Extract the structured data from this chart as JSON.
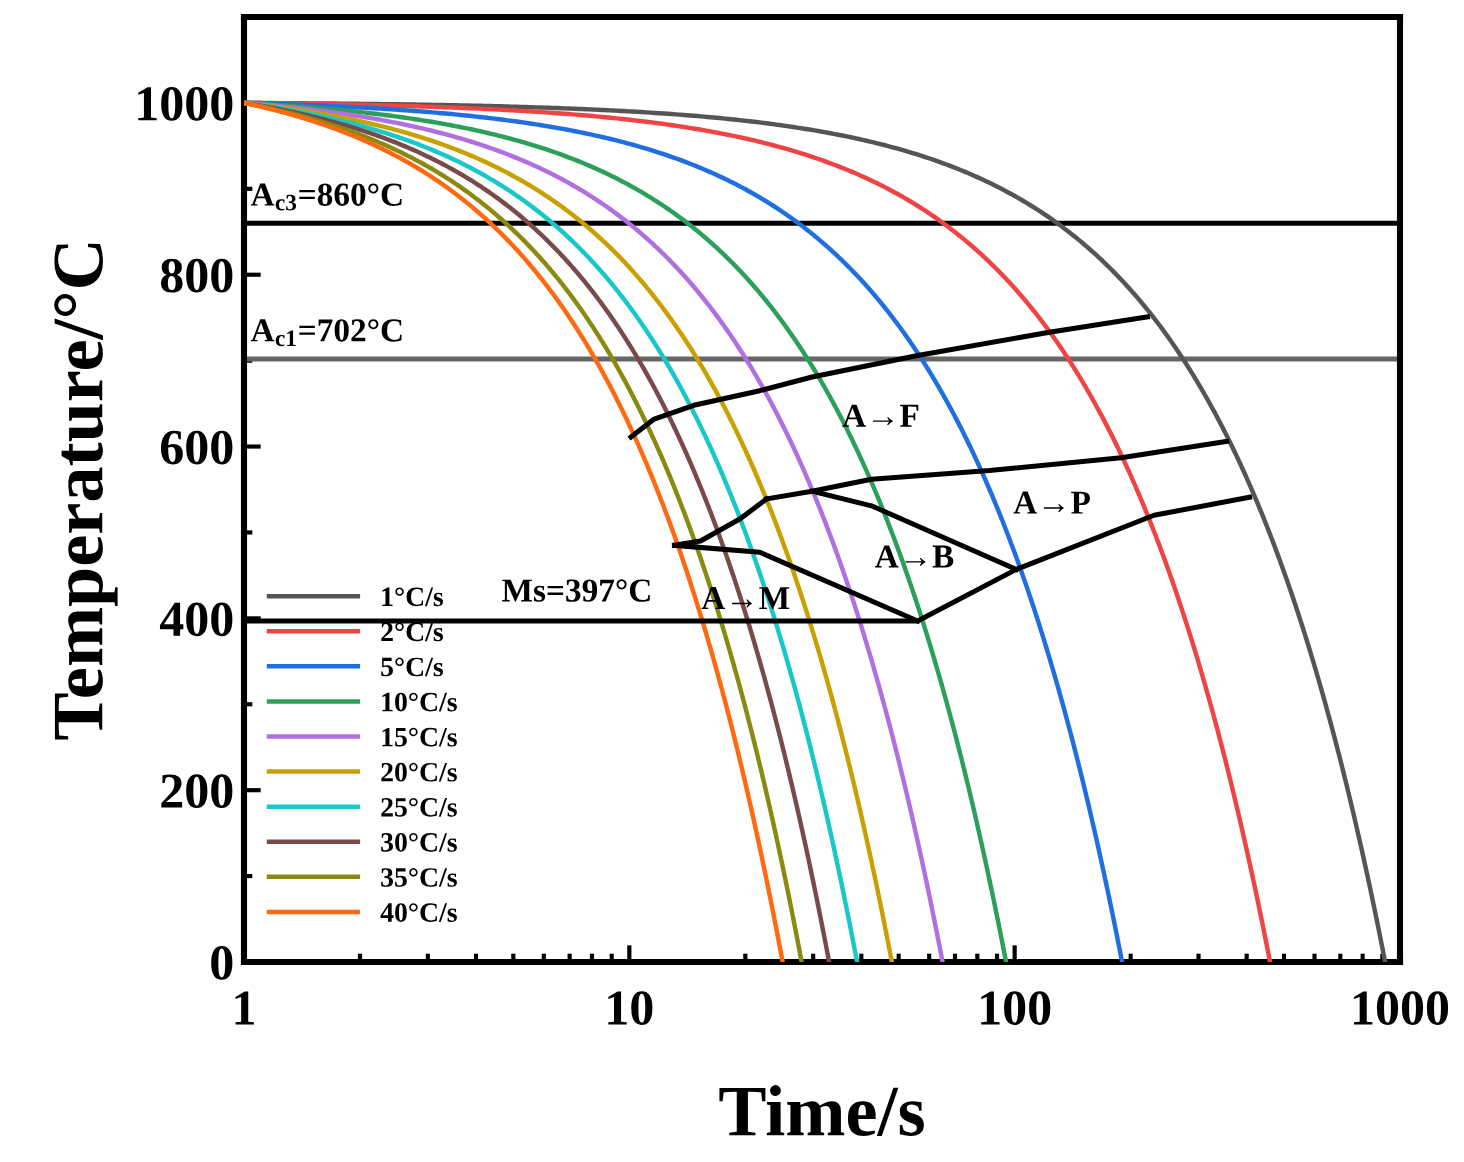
{
  "chart_data": {
    "type": "line",
    "xlabel": "Time/s",
    "ylabel": "Temperature/°C",
    "log": "x",
    "xlim": [
      1,
      1000
    ],
    "ylim": [
      0,
      1100
    ],
    "xticks": [
      1,
      10,
      100,
      1000
    ],
    "yticks": [
      0,
      200,
      400,
      600,
      800,
      1000
    ],
    "grid": false,
    "legend": "bottom left",
    "marker": "none",
    "line_style": "solid",
    "series": [
      {
        "name": "1°C/s",
        "color": "#555555",
        "x": [
          1,
          2.83,
          5.57,
          10.14,
          19.28,
          46.7,
          92.4,
          183.8,
          275.2,
          366.6,
          458,
          549.4,
          640.8,
          732.2,
          823.6,
          915
        ],
        "values": [
          1000,
          998,
          995,
          990,
          980,
          950,
          900,
          800,
          700,
          600,
          500,
          400,
          300,
          200,
          100,
          0
        ]
      },
      {
        "name": "2°C/s",
        "color": "#ee4444",
        "x": [
          1,
          1.918,
          3.295,
          5.59,
          10.18,
          23.95,
          46.9,
          92.8,
          138.7,
          184.6,
          230.5,
          276.4,
          322.3,
          368.2,
          414.1,
          460
        ],
        "values": [
          1000,
          998,
          995,
          990,
          980,
          950,
          900,
          800,
          700,
          600,
          500,
          400,
          300,
          200,
          100,
          0
        ]
      },
      {
        "name": "5°C/s",
        "color": "#1f6fe0",
        "x": [
          1,
          1.378,
          1.945,
          2.89,
          4.78,
          10.45,
          19.9,
          38.8,
          57.7,
          76.6,
          95.5,
          114.4,
          133.3,
          152.2,
          171.1,
          190
        ],
        "values": [
          1000,
          998,
          995,
          990,
          980,
          950,
          900,
          800,
          700,
          600,
          500,
          400,
          300,
          200,
          100,
          0
        ]
      },
      {
        "name": "10°C/s",
        "color": "#2ca05a",
        "x": [
          1,
          1.188,
          1.47,
          1.94,
          2.88,
          5.7,
          10.4,
          19.8,
          29.2,
          38.6,
          48,
          57.4,
          66.8,
          76.2,
          85.6,
          95
        ],
        "values": [
          1000,
          998,
          995,
          990,
          980,
          950,
          900,
          800,
          700,
          600,
          500,
          400,
          300,
          200,
          100,
          0
        ]
      },
      {
        "name": "15°C/s",
        "color": "#b070e0",
        "x": [
          1,
          1.128,
          1.32,
          1.64,
          2.28,
          4.2,
          7.4,
          13.8,
          20.2,
          26.6,
          33,
          39.4,
          45.8,
          52.2,
          58.6,
          65
        ],
        "values": [
          1000,
          998,
          995,
          990,
          980,
          950,
          900,
          800,
          700,
          600,
          500,
          400,
          300,
          200,
          100,
          0
        ]
      },
      {
        "name": "20°C/s",
        "color": "#c8a000",
        "x": [
          1,
          1.094,
          1.235,
          1.47,
          1.94,
          3.35,
          5.7,
          10.4,
          15.1,
          19.8,
          24.5,
          29.2,
          33.9,
          38.6,
          43.3,
          48
        ],
        "values": [
          1000,
          998,
          995,
          990,
          980,
          950,
          900,
          800,
          700,
          600,
          500,
          400,
          300,
          200,
          100,
          0
        ]
      },
      {
        "name": "25°C/s",
        "color": "#18c8c8",
        "x": [
          1,
          1.076,
          1.19,
          1.38,
          1.76,
          2.9,
          4.8,
          8.6,
          12.4,
          16.2,
          20,
          23.8,
          27.6,
          31.4,
          35.2,
          39
        ],
        "values": [
          1000,
          998,
          995,
          990,
          980,
          950,
          900,
          800,
          700,
          600,
          500,
          400,
          300,
          200,
          100,
          0
        ]
      },
      {
        "name": "30°C/s",
        "color": "#7a4a4a",
        "x": [
          1,
          1.064,
          1.16,
          1.32,
          1.64,
          2.6,
          4.2,
          7.4,
          10.6,
          13.8,
          17,
          20.2,
          23.4,
          26.6,
          29.8,
          33
        ],
        "values": [
          1000,
          998,
          995,
          990,
          980,
          950,
          900,
          800,
          700,
          600,
          500,
          400,
          300,
          200,
          100,
          0
        ]
      },
      {
        "name": "35°C/s",
        "color": "#8a8a10",
        "x": [
          1,
          1.054,
          1.135,
          1.27,
          1.54,
          2.35,
          3.7,
          6.4,
          9.1,
          11.8,
          14.5,
          17.2,
          19.9,
          22.6,
          25.3,
          28
        ],
        "values": [
          1000,
          998,
          995,
          990,
          980,
          950,
          900,
          800,
          700,
          600,
          500,
          400,
          300,
          200,
          100,
          0
        ]
      },
      {
        "name": "40°C/s",
        "color": "#ff6a10",
        "x": [
          1,
          1.048,
          1.12,
          1.24,
          1.48,
          2.2,
          3.4,
          5.8,
          8.2,
          10.6,
          13,
          15.4,
          17.8,
          20.2,
          22.6,
          25
        ],
        "values": [
          1000,
          998,
          995,
          990,
          980,
          950,
          900,
          800,
          700,
          600,
          500,
          400,
          300,
          200,
          100,
          0
        ]
      },
      {
        "color": "#000000",
        "x": [
          10.1,
          11.6,
          14.7,
          21.8,
          29.8,
          56,
          123,
          221
        ],
        "values": [
          611,
          632,
          648,
          665,
          681,
          706,
          733,
          751
        ]
      },
      {
        "color": "#000000",
        "x": [
          22.7,
          29.8,
          42.5,
          86,
          189,
          355
        ],
        "values": [
          539,
          548,
          562,
          572,
          587,
          606
        ]
      },
      {
        "color": "#000000",
        "x": [
          13.1,
          15.3,
          19.4,
          22.7
        ],
        "values": [
          485,
          490,
          516,
          539
        ]
      },
      {
        "color": "#000000",
        "x": [
          29.8,
          42.5,
          101
        ],
        "values": [
          548,
          531,
          457
        ]
      },
      {
        "color": "#000000",
        "x": [
          13.1,
          21.8,
          56
        ],
        "values": [
          485,
          477,
          397
        ]
      },
      {
        "color": "#000000",
        "x": [
          1,
          56,
          101,
          230,
          407
        ],
        "values": [
          397,
          397,
          457,
          520,
          541
        ]
      }
    ],
    "ref_lines": [
      {
        "axis": "y",
        "value": 860,
        "label": "A$_{c3}$=860°C",
        "color": "#000000"
      },
      {
        "axis": "y",
        "value": 702,
        "label": "A$_{c1}$=702°C",
        "color": "#666666"
      }
    ],
    "annotations": [
      "A→F",
      "A→P",
      "A→B",
      "A→M",
      "Ms=397°C"
    ]
  }
}
